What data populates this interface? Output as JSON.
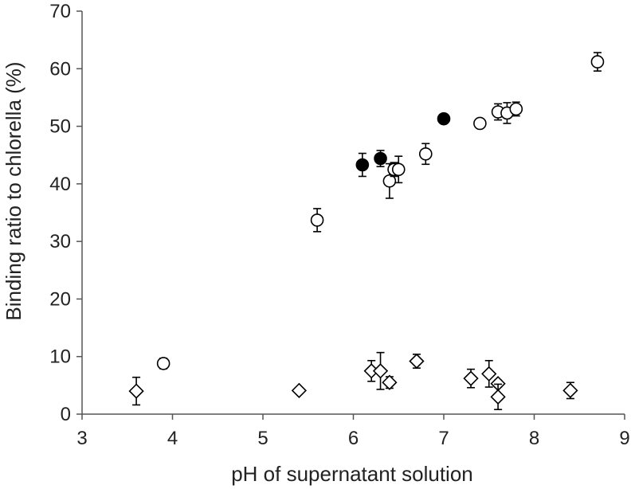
{
  "chart_data": {
    "type": "scatter",
    "title": "",
    "xlabel": "pH of supernatant solution",
    "ylabel": "Binding ratio to chlorella (%)",
    "xlim": [
      3,
      9
    ],
    "ylim": [
      0,
      70
    ],
    "xticks": [
      3,
      4,
      5,
      6,
      7,
      8,
      9
    ],
    "yticks": [
      0,
      10,
      20,
      30,
      40,
      50,
      60,
      70
    ],
    "grid": false,
    "legend": "none",
    "series": [
      {
        "marker": "open-circle",
        "color": "#000000",
        "points": [
          {
            "x": 3.9,
            "y": 8.8,
            "err": 0.9
          },
          {
            "x": 5.6,
            "y": 33.7,
            "err": 2.0
          },
          {
            "x": 6.4,
            "y": 40.5,
            "err": 3.0
          },
          {
            "x": 6.45,
            "y": 42.5,
            "err": 1.2
          },
          {
            "x": 6.5,
            "y": 42.5,
            "err": 2.3
          },
          {
            "x": 6.8,
            "y": 45.2,
            "err": 1.8
          },
          {
            "x": 7.4,
            "y": 50.5,
            "err": 0.4
          },
          {
            "x": 7.6,
            "y": 52.5,
            "err": 1.4
          },
          {
            "x": 7.7,
            "y": 52.3,
            "err": 1.8
          },
          {
            "x": 7.8,
            "y": 53.0,
            "err": 1.2
          },
          {
            "x": 8.7,
            "y": 61.2,
            "err": 1.6
          }
        ]
      },
      {
        "marker": "filled-circle",
        "color": "#000000",
        "points": [
          {
            "x": 6.1,
            "y": 43.3,
            "err": 2.0
          },
          {
            "x": 6.3,
            "y": 44.4,
            "err": 1.4
          },
          {
            "x": 7.0,
            "y": 51.3,
            "err": 0.4
          }
        ]
      },
      {
        "marker": "open-diamond",
        "color": "#000000",
        "points": [
          {
            "x": 3.6,
            "y": 4.0,
            "err": 2.4
          },
          {
            "x": 5.4,
            "y": 4.1,
            "err": 0.3
          },
          {
            "x": 6.2,
            "y": 7.5,
            "err": 1.8
          },
          {
            "x": 6.3,
            "y": 7.5,
            "err": 3.2
          },
          {
            "x": 6.4,
            "y": 5.5,
            "err": 1.0
          },
          {
            "x": 6.7,
            "y": 9.2,
            "err": 1.2
          },
          {
            "x": 7.3,
            "y": 6.2,
            "err": 1.6
          },
          {
            "x": 7.5,
            "y": 7.0,
            "err": 2.3
          },
          {
            "x": 7.6,
            "y": 5.3,
            "err": 0.6
          },
          {
            "x": 7.6,
            "y": 3.0,
            "err": 2.2
          },
          {
            "x": 8.4,
            "y": 4.1,
            "err": 1.4
          }
        ]
      }
    ]
  }
}
